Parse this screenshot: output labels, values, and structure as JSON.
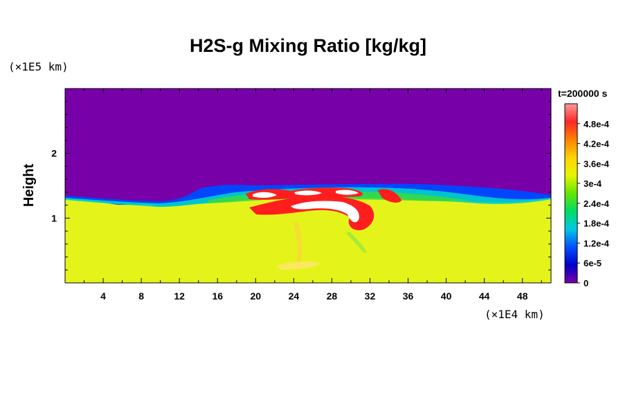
{
  "chart_data": {
    "type": "heatmap",
    "title": "H2S-g Mixing Ratio [kg/kg]",
    "ylabel": "Height",
    "y_unit": "(×1E5 km)",
    "x_unit": "(×1E4 km)",
    "time_label": "t=200000 s",
    "xlim": [
      0,
      51
    ],
    "ylim": [
      0,
      3
    ],
    "x_ticks": [
      "4",
      "8",
      "12",
      "16",
      "20",
      "24",
      "28",
      "32",
      "36",
      "40",
      "44",
      "48"
    ],
    "y_ticks": [
      "1",
      "2"
    ],
    "colorbar": {
      "range": [
        0,
        0.00054
      ],
      "tick_labels": [
        "0",
        "6e-5",
        "1.2e-4",
        "1.8e-4",
        "2.4e-4",
        "3e-4",
        "3.6e-4",
        "4.2e-4",
        "4.8e-4"
      ],
      "colors": [
        "#7a00a8",
        "#0000c8",
        "#0050ff",
        "#00c8e6",
        "#00dc64",
        "#64e600",
        "#e6f500",
        "#ffd200",
        "#ff8200",
        "#ff2828",
        "#ff9a9a"
      ]
    },
    "colors": {
      "background_field": "#7800a8",
      "lower_field": "#e4f41a",
      "high_concentration": "#ff1e1e",
      "peak": "#ffffff"
    }
  }
}
